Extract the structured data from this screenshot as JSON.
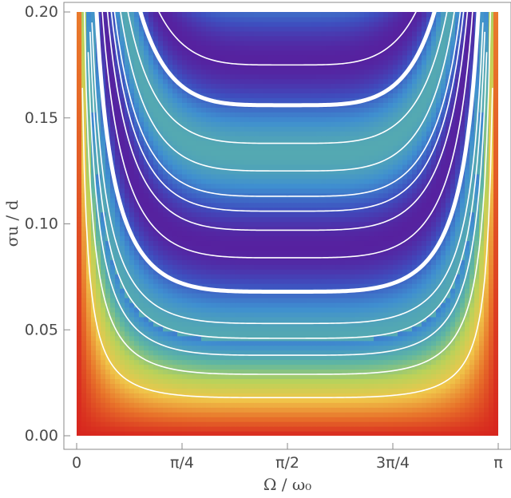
{
  "chart_data": {
    "type": "heatmap",
    "title": "",
    "xlabel": "Ω / ω₀",
    "ylabel": "σu / d",
    "xlim": [
      0,
      3.14159
    ],
    "ylim": [
      0,
      0.2
    ],
    "x_ticks": [
      {
        "value": 0,
        "label": "0"
      },
      {
        "value": 0.7854,
        "label": "π/4"
      },
      {
        "value": 1.5708,
        "label": "π/2"
      },
      {
        "value": 2.3562,
        "label": "3π/4"
      },
      {
        "value": 3.14159,
        "label": "π"
      }
    ],
    "y_ticks": [
      {
        "value": 0.0,
        "label": "0.00"
      },
      {
        "value": 0.05,
        "label": "0.05"
      },
      {
        "value": 0.1,
        "label": "0.10"
      },
      {
        "value": 0.15,
        "label": "0.15"
      },
      {
        "value": 0.2,
        "label": "0.20"
      }
    ],
    "colormap": [
      "#d7261e",
      "#e8732a",
      "#f0c64a",
      "#b9d25a",
      "#5fb6a2",
      "#3f8fd0",
      "#3e4fbf",
      "#5a1a9a",
      "#ffffff"
    ],
    "contours": [
      {
        "min_y": 0.018,
        "width": 1.6
      },
      {
        "min_y": 0.029,
        "width": 1.6
      },
      {
        "min_y": 0.038,
        "width": 1.6
      },
      {
        "min_y": 0.046,
        "width": 1.6
      },
      {
        "min_y": 0.053,
        "width": 1.6
      },
      {
        "min_y": 0.068,
        "width": 5.0
      },
      {
        "min_y": 0.084,
        "width": 1.6
      },
      {
        "min_y": 0.097,
        "width": 1.6
      },
      {
        "min_y": 0.106,
        "width": 1.6
      },
      {
        "min_y": 0.113,
        "width": 1.6
      },
      {
        "min_y": 0.125,
        "width": 1.6
      },
      {
        "min_y": 0.138,
        "width": 1.6
      },
      {
        "min_y": 0.156,
        "width": 5.0
      },
      {
        "min_y": 0.175,
        "width": 1.6
      }
    ]
  }
}
